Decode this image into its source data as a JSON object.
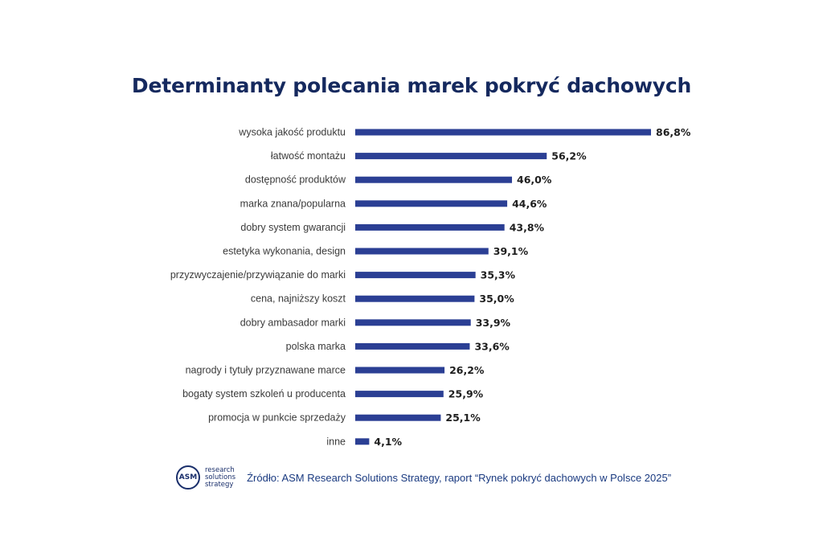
{
  "chart_data": {
    "type": "bar",
    "orientation": "horizontal",
    "title": "Determinanty polecania marek pokryć dachowych",
    "categories": [
      "wysoka jakość produktu",
      "łatwość montażu",
      "dostępność produktów",
      "marka znana/popularna",
      "dobry system gwarancji",
      "estetyka wykonania, design",
      "przyzwyczajenie/przywiązanie do marki",
      "cena, najniższy koszt",
      "dobry ambasador marki",
      "polska marka",
      "nagrody i tytuły przyznawane marce",
      "bogaty system szkoleń u producenta",
      "promocja w punkcie sprzedaży",
      "inne"
    ],
    "values": [
      86.8,
      56.2,
      46.0,
      44.6,
      43.8,
      39.1,
      35.3,
      35.0,
      33.9,
      33.6,
      26.2,
      25.9,
      25.1,
      4.1
    ],
    "value_labels": [
      "86,8%",
      "56,2%",
      "46,0%",
      "44,6%",
      "43,8%",
      "39,1%",
      "35,3%",
      "35,0%",
      "33,9%",
      "33,6%",
      "26,2%",
      "25,9%",
      "25,1%",
      "4,1%"
    ],
    "unit": "%",
    "xlim": [
      0,
      86.8
    ],
    "grid": false,
    "legend": "none",
    "bar_color": "#2b3f94"
  },
  "footer": {
    "logo_abbr": "ASM",
    "logo_lines": [
      "research",
      "solutions",
      "strategy"
    ],
    "source": "Źródło: ASM Research Solutions Strategy, raport “Rynek pokryć dachowych w Polsce 2025”"
  }
}
